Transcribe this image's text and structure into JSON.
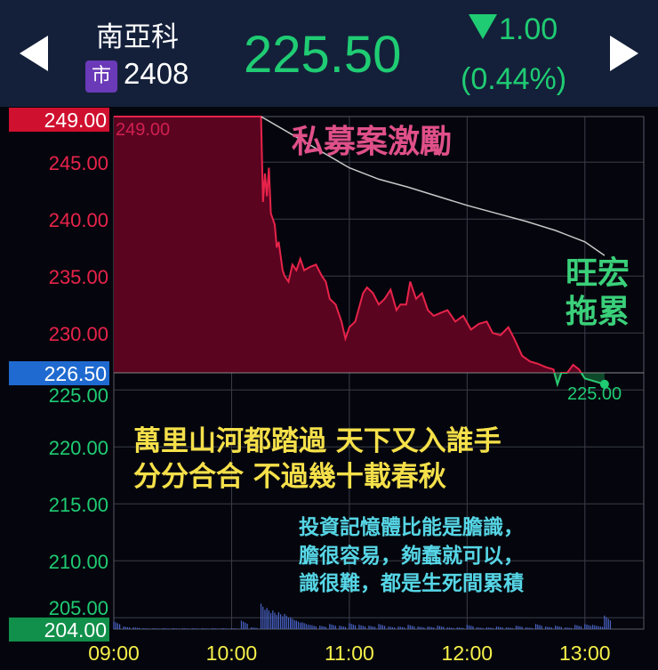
{
  "header": {
    "stock_name": "南亞科",
    "market_badge": "市",
    "stock_code": "2408",
    "price": "225.50",
    "change": "1.00",
    "change_pct": "(0.44%)",
    "direction": "down"
  },
  "colors": {
    "up": "#e8234a",
    "down": "#1fcc73",
    "header_bg": "#14203a",
    "vwap": "#c8c8c8",
    "time_labels": "#f5f04a"
  },
  "annotations": {
    "top": "私募案激勵",
    "right": "旺宏\n拖累",
    "poem": "萬里山河都踏過 天下又入誰手\n分分合合 不過幾十載春秋",
    "quote": "投資記憶體比能是膽識，\n膽很容易，夠蠢就可以，\n識很難，都是生死間累積"
  },
  "chart_data": {
    "type": "line",
    "title": "",
    "ylim": [
      204,
      249
    ],
    "reference_price": 226.5,
    "reference_label": "226.50",
    "max_label": "249.00",
    "min_label": "204.00",
    "high_label": "249.00",
    "low_label": "225.00",
    "y_ticks": [
      "245.00",
      "240.00",
      "235.00",
      "230.00",
      "225.00",
      "220.00",
      "215.00",
      "210.00",
      "205.00"
    ],
    "y_tick_values": [
      245,
      240,
      235,
      230,
      225,
      220,
      215,
      210,
      205
    ],
    "x_ticks": [
      "09:00",
      "10:00",
      "11:00",
      "12:00",
      "13:00"
    ],
    "xlim": [
      "09:00",
      "13:30"
    ],
    "grid": true,
    "price": [
      [
        "09:00",
        249
      ],
      [
        "10:15",
        249
      ],
      [
        "10:16",
        241.5
      ],
      [
        "10:17",
        244
      ],
      [
        "10:18",
        242
      ],
      [
        "10:19",
        244.5
      ],
      [
        "10:20",
        240.5
      ],
      [
        "10:22",
        239.5
      ],
      [
        "10:23",
        237.5
      ],
      [
        "10:24",
        238
      ],
      [
        "10:26",
        235.5
      ],
      [
        "10:27",
        235
      ],
      [
        "10:29",
        234.5
      ],
      [
        "10:31",
        236
      ],
      [
        "10:33",
        235.5
      ],
      [
        "10:35",
        236.5
      ],
      [
        "10:37",
        235.5
      ],
      [
        "10:40",
        235.8
      ],
      [
        "10:43",
        236
      ],
      [
        "10:46",
        235
      ],
      [
        "10:48",
        234.5
      ],
      [
        "10:50",
        233
      ],
      [
        "10:53",
        232.5
      ],
      [
        "10:56",
        231
      ],
      [
        "10:58",
        229.5
      ],
      [
        "11:00",
        230.5
      ],
      [
        "11:03",
        231
      ],
      [
        "11:07",
        233.5
      ],
      [
        "11:09",
        234
      ],
      [
        "11:12",
        233.5
      ],
      [
        "11:15",
        232.5
      ],
      [
        "11:18",
        233
      ],
      [
        "11:21",
        233.8
      ],
      [
        "11:24",
        232
      ],
      [
        "11:26",
        232.5
      ],
      [
        "11:29",
        232.5
      ],
      [
        "11:31",
        234.5
      ],
      [
        "11:34",
        233
      ],
      [
        "11:37",
        233.5
      ],
      [
        "11:40",
        232
      ],
      [
        "11:43",
        231.5
      ],
      [
        "11:47",
        231.8
      ],
      [
        "11:50",
        232
      ],
      [
        "11:54",
        231
      ],
      [
        "11:58",
        231.5
      ],
      [
        "12:02",
        230.3
      ],
      [
        "12:06",
        230.8
      ],
      [
        "12:10",
        231
      ],
      [
        "12:13",
        230
      ],
      [
        "12:17",
        229.8
      ],
      [
        "12:21",
        230.5
      ],
      [
        "12:24",
        229.5
      ],
      [
        "12:28",
        228
      ],
      [
        "12:32",
        227.5
      ],
      [
        "12:36",
        227.3
      ],
      [
        "12:40",
        227
      ],
      [
        "12:44",
        226.8
      ],
      [
        "12:46",
        225.5
      ],
      [
        "12:48",
        226.5
      ],
      [
        "12:51",
        226.5
      ],
      [
        "12:54",
        227.2
      ],
      [
        "12:57",
        226.8
      ],
      [
        "13:00",
        226
      ],
      [
        "13:04",
        225.8
      ],
      [
        "13:10",
        225.5
      ]
    ],
    "vwap": [
      [
        "10:15",
        249
      ],
      [
        "10:30",
        247.5
      ],
      [
        "10:45",
        246
      ],
      [
        "11:00",
        244.5
      ],
      [
        "11:15",
        243.5
      ],
      [
        "11:30",
        242.8
      ],
      [
        "11:45",
        242
      ],
      [
        "12:00",
        241.2
      ],
      [
        "12:15",
        240.5
      ],
      [
        "12:30",
        239.8
      ],
      [
        "12:45",
        239
      ],
      [
        "13:00",
        238
      ],
      [
        "13:10",
        236.8
      ]
    ],
    "volume": [
      [
        "09:00",
        9
      ],
      [
        "09:05",
        3
      ],
      [
        "09:10",
        2
      ],
      [
        "09:15",
        1
      ],
      [
        "09:20",
        1
      ],
      [
        "09:25",
        1
      ],
      [
        "09:30",
        1
      ],
      [
        "09:35",
        1
      ],
      [
        "09:40",
        1
      ],
      [
        "09:45",
        1
      ],
      [
        "09:50",
        1
      ],
      [
        "09:55",
        1
      ],
      [
        "10:00",
        1
      ],
      [
        "10:05",
        10
      ],
      [
        "10:10",
        2
      ],
      [
        "10:15",
        30
      ],
      [
        "10:18",
        25
      ],
      [
        "10:21",
        22
      ],
      [
        "10:24",
        20
      ],
      [
        "10:27",
        18
      ],
      [
        "10:30",
        14
      ],
      [
        "10:33",
        10
      ],
      [
        "10:36",
        8
      ],
      [
        "10:40",
        5
      ],
      [
        "10:45",
        4
      ],
      [
        "10:50",
        6
      ],
      [
        "10:55",
        4
      ],
      [
        "11:00",
        7
      ],
      [
        "11:05",
        5
      ],
      [
        "11:10",
        4
      ],
      [
        "11:15",
        6
      ],
      [
        "11:20",
        3
      ],
      [
        "11:25",
        3
      ],
      [
        "11:30",
        5
      ],
      [
        "11:35",
        3
      ],
      [
        "11:40",
        3
      ],
      [
        "11:45",
        4
      ],
      [
        "11:50",
        2
      ],
      [
        "11:55",
        2
      ],
      [
        "12:00",
        5
      ],
      [
        "12:05",
        2
      ],
      [
        "12:10",
        2
      ],
      [
        "12:15",
        3
      ],
      [
        "12:20",
        2
      ],
      [
        "12:25",
        4
      ],
      [
        "12:30",
        2
      ],
      [
        "12:35",
        6
      ],
      [
        "12:40",
        3
      ],
      [
        "12:45",
        4
      ],
      [
        "12:50",
        2
      ],
      [
        "12:55",
        5
      ],
      [
        "13:00",
        6
      ],
      [
        "13:04",
        5
      ],
      [
        "13:08",
        3
      ],
      [
        "13:10",
        16
      ]
    ]
  }
}
